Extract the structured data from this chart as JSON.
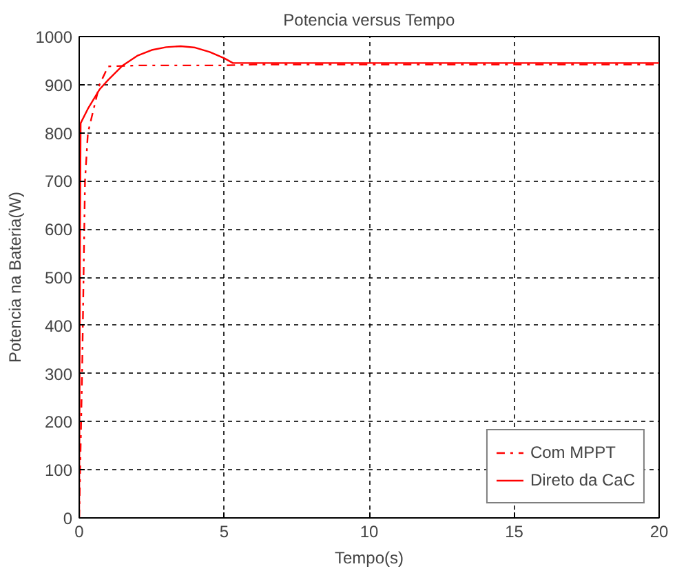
{
  "chart_data": {
    "type": "line",
    "title": "Potencia versus Tempo",
    "xlabel": "Tempo(s)",
    "ylabel": "Potencia na Bateria(W)",
    "xlim": [
      0,
      20
    ],
    "ylim": [
      0,
      1000
    ],
    "xticks": [
      0,
      5,
      10,
      15,
      20
    ],
    "yticks": [
      0,
      100,
      200,
      300,
      400,
      500,
      600,
      700,
      800,
      900,
      1000
    ],
    "grid": true,
    "legend": "bottom right",
    "series": [
      {
        "name": "Com MPPT",
        "color": "#ff0000",
        "line_style": "dashed",
        "x": [
          0,
          0.1,
          0.2,
          0.3,
          0.5,
          0.7,
          1.0,
          2,
          3,
          4,
          5,
          6,
          8,
          10,
          12,
          14,
          16,
          18,
          20
        ],
        "values": [
          0,
          300,
          700,
          800,
          850,
          900,
          938,
          940,
          940,
          940,
          940,
          942,
          942,
          942,
          942,
          942,
          942,
          942,
          942
        ]
      },
      {
        "name": "Direto da CaC",
        "color": "#ff0000",
        "line_style": "solid",
        "x": [
          0,
          0.03,
          0.05,
          0.3,
          0.7,
          1.0,
          1.5,
          2.0,
          2.5,
          3.0,
          3.5,
          4.0,
          4.5,
          5.0,
          5.3,
          6,
          8,
          10,
          12,
          14,
          16,
          18,
          20
        ],
        "values": [
          0,
          600,
          820,
          850,
          890,
          910,
          940,
          960,
          972,
          978,
          980,
          977,
          968,
          955,
          945,
          945,
          945,
          945,
          945,
          945,
          945,
          945,
          945
        ]
      }
    ]
  }
}
